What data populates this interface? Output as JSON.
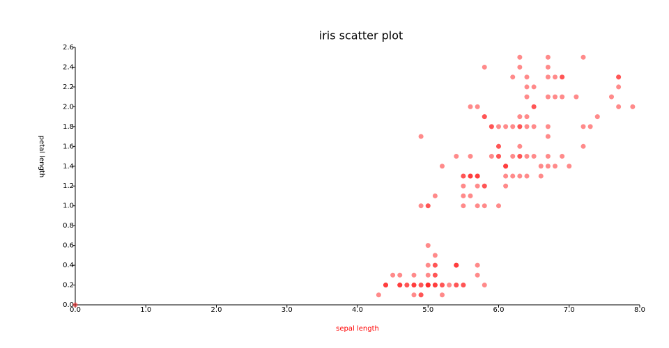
{
  "chart_data": {
    "type": "scatter",
    "title": "iris scatter plot",
    "x_label": "sepal length",
    "y_label": "petal length",
    "x_label_color": "#ff0000",
    "color": "#ff2a2a",
    "marker_opacity": 0.55,
    "xlim": [
      0,
      8
    ],
    "ylim": [
      0,
      2.6
    ],
    "xticks": [
      {
        "value": 0,
        "label": "0.0"
      },
      {
        "value": 1,
        "label": "1.0"
      },
      {
        "value": 2,
        "label": "2.0"
      },
      {
        "value": 3,
        "label": "3.0"
      },
      {
        "value": 4,
        "label": "4.0"
      },
      {
        "value": 5,
        "label": "5.0"
      },
      {
        "value": 6,
        "label": "6.0"
      },
      {
        "value": 7,
        "label": "7.0"
      },
      {
        "value": 8,
        "label": "8.0"
      }
    ],
    "yticks": [
      {
        "value": 0,
        "label": "0.0"
      },
      0.2,
      0.4,
      0.6,
      0.8,
      {
        "value": 1,
        "label": "1.0"
      },
      1.2,
      1.4,
      1.6,
      1.8,
      {
        "value": 2,
        "label": "2.0"
      },
      2.2,
      2.4,
      2.6
    ],
    "x": [
      0,
      5.1,
      4.9,
      4.7,
      4.6,
      5.0,
      5.4,
      4.6,
      5.0,
      4.4,
      4.9,
      5.4,
      4.8,
      4.8,
      4.3,
      5.8,
      5.7,
      5.4,
      5.1,
      5.7,
      5.1,
      5.4,
      5.1,
      4.6,
      5.1,
      4.8,
      5.0,
      5.0,
      5.2,
      5.2,
      4.7,
      4.8,
      5.4,
      5.2,
      5.5,
      4.9,
      5.0,
      5.5,
      4.9,
      4.4,
      5.1,
      5.0,
      4.5,
      4.4,
      5.0,
      5.1,
      4.8,
      5.1,
      4.6,
      5.3,
      5.0,
      7.0,
      6.4,
      6.9,
      5.5,
      6.5,
      5.7,
      6.3,
      4.9,
      6.6,
      5.2,
      5.0,
      5.9,
      6.0,
      6.1,
      5.6,
      6.7,
      5.6,
      5.8,
      6.2,
      5.6,
      5.9,
      6.1,
      6.3,
      6.1,
      6.4,
      6.6,
      6.8,
      6.7,
      6.0,
      5.7,
      5.5,
      5.5,
      5.8,
      6.0,
      5.4,
      6.0,
      6.7,
      6.3,
      5.6,
      5.5,
      5.5,
      6.1,
      5.8,
      5.0,
      5.6,
      5.7,
      5.7,
      6.2,
      5.1,
      5.7,
      6.3,
      5.8,
      7.1,
      6.3,
      6.5,
      7.6,
      4.9,
      7.3,
      6.7,
      7.2,
      6.5,
      6.4,
      6.8,
      5.7,
      5.8,
      6.4,
      6.5,
      7.7,
      7.7,
      6.0,
      6.9,
      5.6,
      7.7,
      6.3,
      6.7,
      7.2,
      6.2,
      6.1,
      6.4,
      7.2,
      7.4,
      7.9,
      6.4,
      6.3,
      6.1,
      7.7,
      6.3,
      6.4,
      6.0,
      6.9,
      6.7,
      6.9,
      5.8,
      6.8,
      6.7,
      6.7,
      6.3,
      6.5,
      6.2,
      5.9
    ],
    "y": [
      0,
      0.2,
      0.2,
      0.2,
      0.2,
      0.2,
      0.4,
      0.3,
      0.2,
      0.2,
      0.1,
      0.2,
      0.2,
      0.1,
      0.1,
      0.2,
      0.4,
      0.4,
      0.3,
      0.3,
      0.3,
      0.2,
      0.4,
      0.2,
      0.5,
      0.2,
      0.2,
      0.4,
      0.2,
      0.2,
      0.2,
      0.2,
      0.4,
      0.1,
      0.2,
      0.2,
      0.2,
      0.2,
      0.1,
      0.2,
      0.2,
      0.3,
      0.3,
      0.2,
      0.6,
      0.4,
      0.3,
      0.2,
      0.2,
      0.2,
      0.2,
      1.4,
      1.5,
      1.5,
      1.3,
      1.5,
      1.3,
      1.6,
      1.0,
      1.3,
      1.4,
      1.0,
      1.5,
      1.0,
      1.4,
      1.3,
      1.4,
      1.5,
      1.0,
      1.5,
      1.1,
      1.8,
      1.3,
      1.5,
      1.2,
      1.3,
      1.4,
      1.4,
      1.7,
      1.5,
      1.0,
      1.1,
      1.0,
      1.2,
      1.6,
      1.5,
      1.6,
      1.5,
      1.3,
      1.3,
      1.3,
      1.2,
      1.4,
      1.2,
      1.0,
      1.3,
      1.2,
      1.3,
      1.3,
      1.1,
      1.3,
      2.5,
      1.9,
      2.1,
      1.8,
      2.2,
      2.1,
      1.7,
      1.8,
      1.8,
      2.5,
      2.0,
      1.9,
      2.1,
      2.0,
      2.4,
      2.3,
      1.8,
      2.2,
      2.3,
      1.5,
      2.3,
      2.0,
      2.0,
      1.8,
      2.1,
      1.8,
      1.8,
      1.8,
      2.1,
      1.6,
      1.9,
      2.0,
      2.2,
      1.5,
      1.4,
      2.3,
      2.4,
      1.8,
      1.8,
      2.1,
      2.4,
      2.3,
      1.9,
      2.3,
      2.5,
      2.3,
      1.9,
      2.0,
      2.3,
      1.8
    ]
  }
}
